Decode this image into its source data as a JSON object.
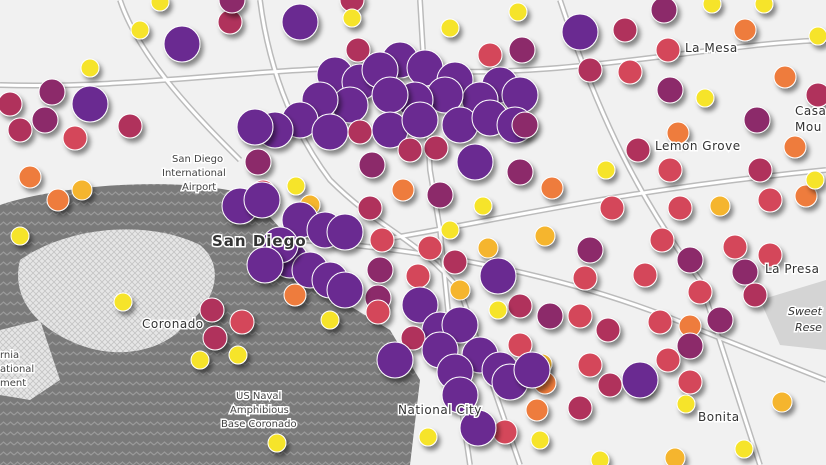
{
  "map": {
    "labels": [
      {
        "text": "La Mesa"
      },
      {
        "text": "Casa"
      },
      {
        "text": "Mou"
      },
      {
        "text": "Lemon Grove"
      },
      {
        "text": "San Diego"
      },
      {
        "text": "International"
      },
      {
        "text": "Airport"
      },
      {
        "text": "San Diego"
      },
      {
        "text": "La Presa"
      },
      {
        "text": "Sweet"
      },
      {
        "text": "Rese"
      },
      {
        "text": "Coronado"
      },
      {
        "text": "rnia"
      },
      {
        "text": "ational"
      },
      {
        "text": "ment"
      },
      {
        "text": "US Naval"
      },
      {
        "text": "Amphibious"
      },
      {
        "text": "Base Coronado"
      },
      {
        "text": "National City"
      },
      {
        "text": "Bonita"
      }
    ]
  }
}
